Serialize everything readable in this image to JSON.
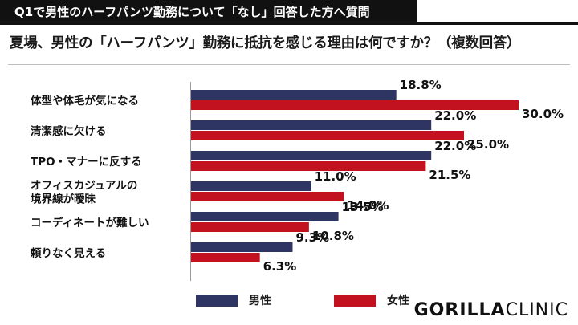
{
  "header": {
    "title": "Q1で男性のハーフパンツ勤務について「なし」回答した方へ質問"
  },
  "question": "夏場、男性の「ハーフパンツ」勤務に抵抗を感じる理由は何ですか？（複数回答）",
  "logo": {
    "part1": "GORILLA",
    "part2": "CLINIC"
  },
  "colors": {
    "male": "#2e3563",
    "female": "#c3121f"
  },
  "chart_data": {
    "type": "bar",
    "orientation": "horizontal",
    "categories": [
      [
        "体型や体毛が気になる"
      ],
      [
        "清潔感に欠ける"
      ],
      [
        "TPO・マナーに反する"
      ],
      [
        "オフィスカジュアルの",
        "境界線が曖昧"
      ],
      [
        "コーディネートが難しい"
      ],
      [
        "頼りなく見える"
      ]
    ],
    "series": [
      {
        "name": "男性",
        "values": [
          18.8,
          22.0,
          22.0,
          11.0,
          13.5,
          9.3
        ]
      },
      {
        "name": "女性",
        "values": [
          30.0,
          25.0,
          21.5,
          14.0,
          10.8,
          6.3
        ]
      }
    ],
    "value_suffix": "%",
    "xlim": [
      0,
      30
    ],
    "legend": "bottom"
  }
}
